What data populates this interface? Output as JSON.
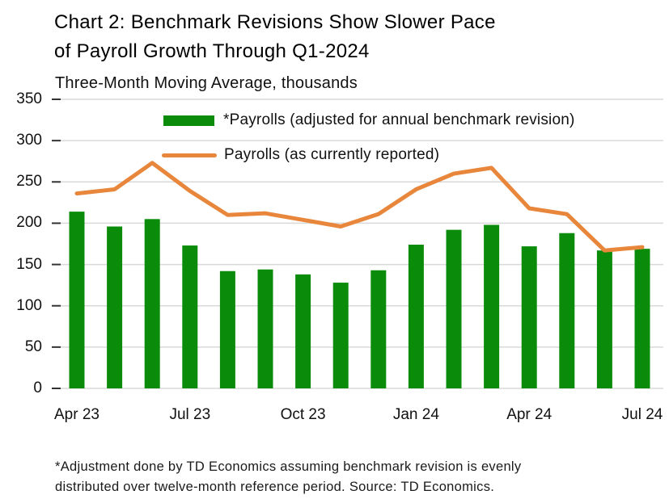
{
  "header": {
    "title_line1": "Chart 2: Benchmark Revisions Show Slower Pace",
    "title_line2": "of Payroll Growth Through Q1-2024",
    "subtitle": "Three-Month Moving Average, thousands"
  },
  "legend": {
    "items": [
      {
        "label": "*Payrolls (adjusted for annual benchmark revision)",
        "swatch": "bar",
        "color": "#0a8c0a"
      },
      {
        "label": "Payrolls (as currently reported)",
        "swatch": "line",
        "color": "#e8873c"
      }
    ]
  },
  "footnote": {
    "line1": "*Adjustment done by TD Economics assuming benchmark revision is evenly",
    "line2": "distributed over twelve-month reference period. Source: TD Economics."
  },
  "colors": {
    "bar_green": "#0a8c0a",
    "line_orange": "#e8873c",
    "gridline": "#d9d9d9",
    "tick": "#333333",
    "text": "#111111"
  },
  "chart_data": {
    "type": "bar",
    "title": "Chart 2: Benchmark Revisions Show Slower Pace of Payroll Growth Through Q1-2024",
    "subtitle": "Three-Month Moving Average, thousands",
    "x": [
      "Apr 23",
      "May 23",
      "Jun 23",
      "Jul 23",
      "Aug 23",
      "Sep 23",
      "Oct 23",
      "Nov 23",
      "Dec 23",
      "Jan 24",
      "Feb 24",
      "Mar 24",
      "Apr 24",
      "May 24",
      "Jun 24",
      "Jul 24"
    ],
    "x_tick_labels": [
      "Apr 23",
      "Jul 23",
      "Oct 23",
      "Jan 24",
      "Apr 24",
      "Jul 24"
    ],
    "x_tick_indices": [
      0,
      3,
      6,
      9,
      12,
      15
    ],
    "series": [
      {
        "name": "*Payrolls (adjusted for annual benchmark revision)",
        "type": "bar",
        "color": "#0a8c0a",
        "values": [
          214,
          196,
          205,
          173,
          142,
          144,
          138,
          128,
          143,
          174,
          192,
          198,
          172,
          188,
          167,
          169
        ]
      },
      {
        "name": "Payrolls (as currently reported)",
        "type": "line",
        "color": "#e8873c",
        "values": [
          236,
          241,
          273,
          239,
          210,
          212,
          204,
          196,
          211,
          241,
          260,
          267,
          218,
          211,
          167,
          171
        ]
      }
    ],
    "xlabel": "",
    "ylabel": "",
    "ylim": [
      0,
      350
    ],
    "y_ticks": [
      0,
      50,
      100,
      150,
      200,
      250,
      300,
      350
    ],
    "grid": true,
    "legend_position": "top-center"
  }
}
